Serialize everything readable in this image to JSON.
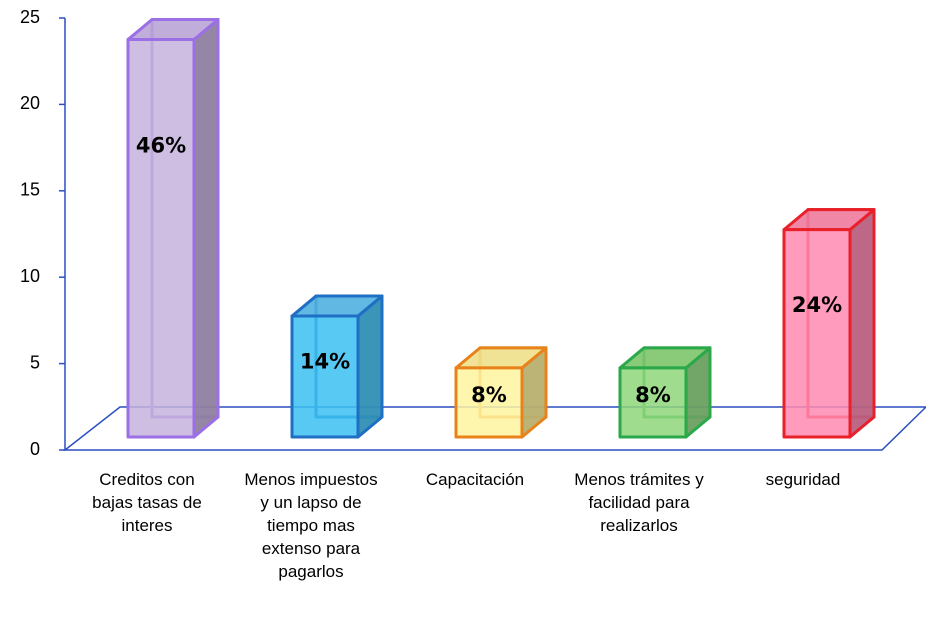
{
  "chart_data": {
    "type": "bar3d",
    "categories": [
      "Creditos con bajas tasas de interes",
      "Menos impuestos y un lapso de tiempo mas extenso para pagarlos",
      "Capacitación",
      "Menos trámites y facilidad para realizarlos",
      "seguridad"
    ],
    "values": [
      23,
      7,
      4,
      4,
      12
    ],
    "value_labels": [
      "46%",
      "14%",
      "8%",
      "8%",
      "24%"
    ],
    "colors": [
      "#c6b3dc",
      "#3bbff0",
      "#fff4a0",
      "#8ed67a",
      "#ff8ab0"
    ],
    "ylim": [
      0,
      25
    ],
    "yticks": [
      0,
      5,
      10,
      15,
      20,
      25
    ]
  }
}
